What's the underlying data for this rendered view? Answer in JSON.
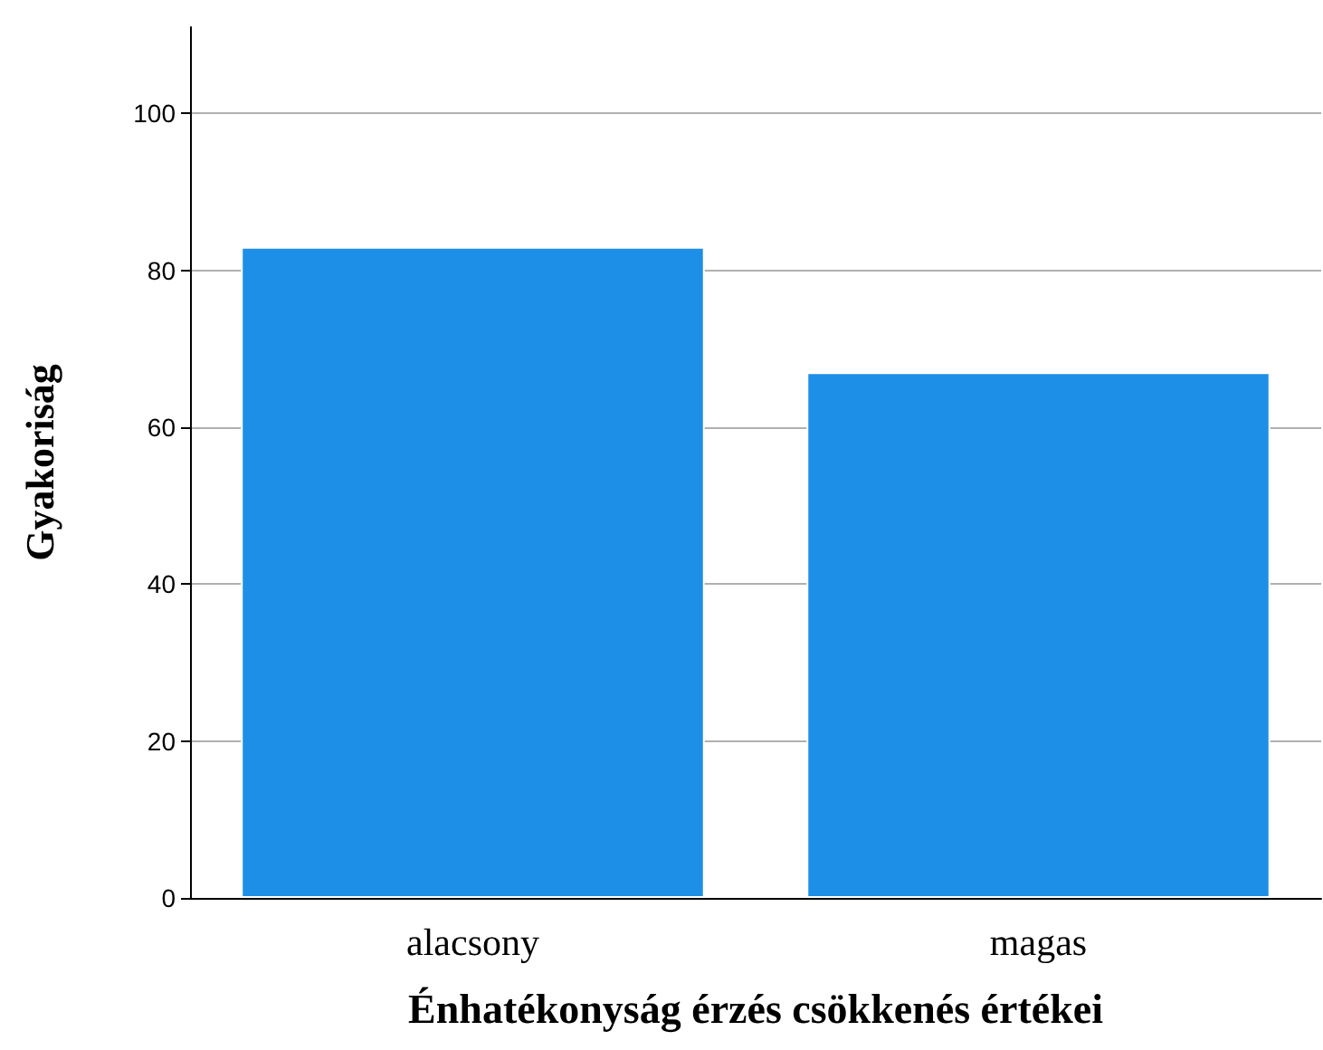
{
  "chart_data": {
    "type": "bar",
    "xlabel": "Énhatékonyság érzés csökkenés értékei",
    "ylabel": "Gyakoriság",
    "categories": [
      "alacsony",
      "magas"
    ],
    "values": [
      83,
      67
    ],
    "color": "#1e8fe6",
    "ylim": [
      0,
      111
    ],
    "yticks": [
      0,
      20,
      40,
      60,
      80,
      100
    ],
    "grid": "y"
  }
}
